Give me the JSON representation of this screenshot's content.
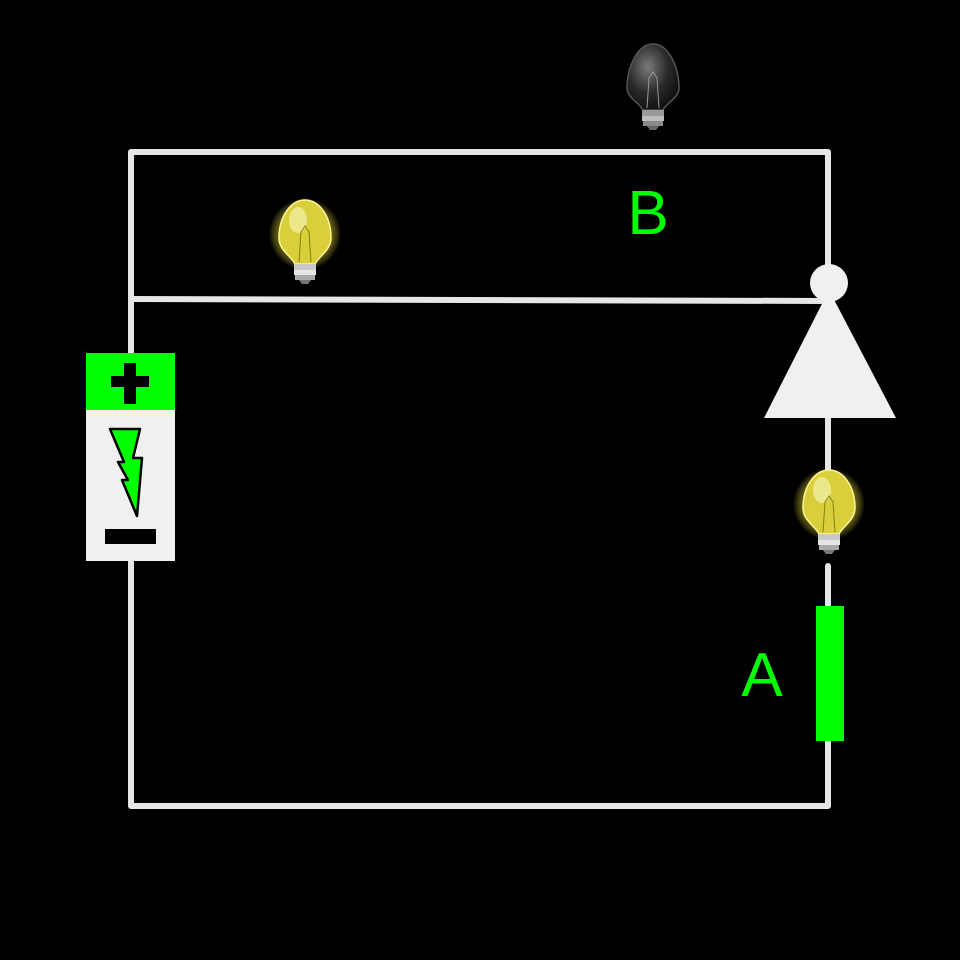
{
  "diagram": {
    "labels": {
      "a": "A",
      "b": "B"
    },
    "battery": {
      "positive_symbol": "+",
      "negative_symbol": "−"
    },
    "bulbs": [
      {
        "id": "top",
        "state": "off"
      },
      {
        "id": "upper-branch",
        "state": "on"
      },
      {
        "id": "right",
        "state": "on"
      }
    ],
    "colors": {
      "background": "#000000",
      "wire": "#e6e6e6",
      "accent": "#00ff00",
      "bulb_on_glow": "#e8e04a",
      "bulb_off": "#2a2a2a"
    }
  }
}
